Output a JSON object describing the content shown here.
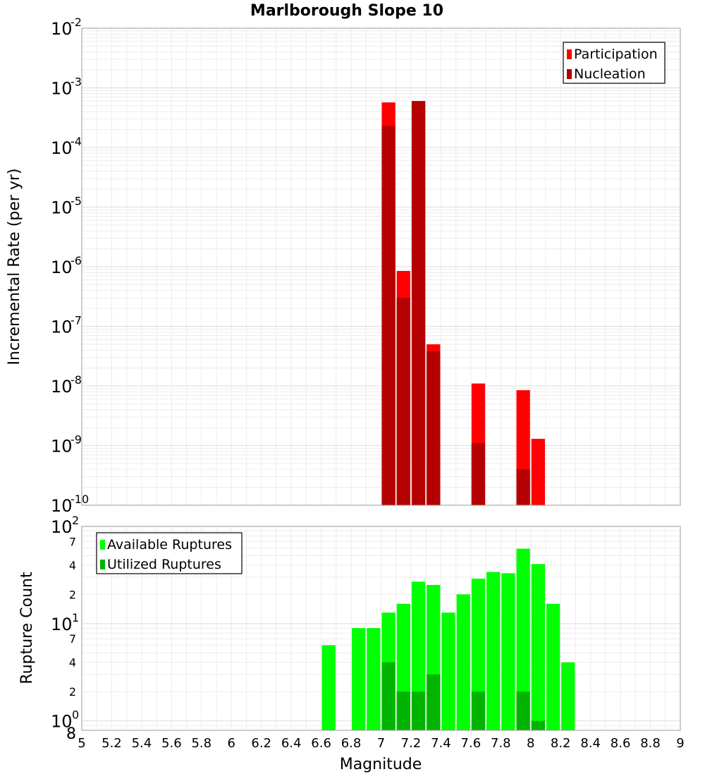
{
  "figure": {
    "title": "Marlborough Slope 10",
    "xlabel": "Magnitude"
  },
  "chart_data": [
    {
      "type": "bar",
      "title": "Marlborough Slope 10",
      "xlabel": "Magnitude",
      "ylabel": "Incremental Rate (per yr)",
      "yscale": "log",
      "xlim": [
        5,
        9
      ],
      "ylim": [
        1e-10,
        0.01
      ],
      "x_ticks": [
        "5",
        "5.2",
        "5.4",
        "5.6",
        "5.8",
        "6",
        "6.2",
        "6.4",
        "6.6",
        "6.8",
        "7",
        "7.2",
        "7.4",
        "7.6",
        "7.8",
        "8",
        "8.2",
        "8.4",
        "8.6",
        "8.8",
        "9"
      ],
      "y_tick_exponents": [
        "-2",
        "-3",
        "-4",
        "-5",
        "-6",
        "-7",
        "-8",
        "-9",
        "-10"
      ],
      "bin_width": 0.1,
      "grid": true,
      "legend_position": "top-right",
      "series": [
        {
          "name": "Participation",
          "color": "#ff0000",
          "x": [
            7.05,
            7.15,
            7.25,
            7.35,
            7.65,
            7.95,
            8.05
          ],
          "values": [
            0.00057,
            8.5e-07,
            0.0006,
            5e-08,
            1.1e-08,
            8.5e-09,
            1.3e-09
          ]
        },
        {
          "name": "Nucleation",
          "color": "#b40000",
          "x": [
            7.05,
            7.15,
            7.25,
            7.35,
            7.65,
            7.95
          ],
          "values": [
            0.00023,
            3e-07,
            0.0006,
            3.8e-08,
            1.1e-09,
            4e-10
          ]
        }
      ]
    },
    {
      "type": "bar",
      "xlabel": "Magnitude",
      "ylabel": "Rupture Count",
      "yscale": "log",
      "xlim": [
        5,
        9
      ],
      "ylim": [
        0.8,
        100
      ],
      "x_ticks": [
        "5",
        "5.2",
        "5.4",
        "5.6",
        "5.8",
        "6",
        "6.2",
        "6.4",
        "6.6",
        "6.8",
        "7",
        "7.2",
        "7.4",
        "7.6",
        "7.8",
        "8",
        "8.2",
        "8.4",
        "8.6",
        "8.8",
        "9"
      ],
      "y_major_ticks": [
        {
          "value": 100,
          "base": "10",
          "exp": "2"
        },
        {
          "value": 10,
          "base": "10",
          "exp": "1"
        },
        {
          "value": 1,
          "base": "10",
          "exp": "0"
        }
      ],
      "y_minor_labels": [
        {
          "value": 70,
          "label": "7"
        },
        {
          "value": 40,
          "label": "4"
        },
        {
          "value": 20,
          "label": "2"
        },
        {
          "value": 7,
          "label": "7"
        },
        {
          "value": 4,
          "label": "4"
        },
        {
          "value": 2,
          "label": "2"
        },
        {
          "value": 0.8,
          "label": "8"
        }
      ],
      "bin_width": 0.1,
      "grid": true,
      "legend_position": "top-left",
      "series": [
        {
          "name": "Available Ruptures",
          "color": "#00ff00",
          "x": [
            6.65,
            6.85,
            6.95,
            7.05,
            7.15,
            7.25,
            7.35,
            7.45,
            7.55,
            7.65,
            7.75,
            7.85,
            7.95,
            8.05,
            8.15,
            8.25
          ],
          "values": [
            6,
            9,
            9,
            13,
            16,
            27,
            25,
            13,
            20,
            29,
            34,
            33,
            59,
            41,
            16,
            4
          ]
        },
        {
          "name": "Utilized Ruptures",
          "color": "#00b400",
          "x": [
            7.05,
            7.15,
            7.25,
            7.35,
            7.65,
            7.95,
            8.05
          ],
          "values": [
            4,
            2,
            2,
            3,
            2,
            2,
            1
          ]
        }
      ]
    }
  ]
}
